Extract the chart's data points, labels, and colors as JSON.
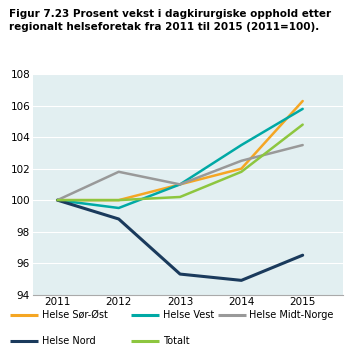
{
  "title_line1": "Figur 7.23 Prosent vekst i dagkirurgiske opphold etter",
  "title_line2": "regionalt helseforetak fra 2011 til 2015 (2011=100).",
  "years": [
    2011,
    2012,
    2013,
    2014,
    2015
  ],
  "series": [
    {
      "name": "Helse Sør-Øst",
      "values": [
        100.0,
        100.0,
        101.0,
        102.0,
        106.3
      ],
      "color": "#F5A623",
      "linewidth": 1.8
    },
    {
      "name": "Helse Vest",
      "values": [
        100.0,
        99.5,
        101.0,
        103.5,
        105.8
      ],
      "color": "#00A9A5",
      "linewidth": 1.8
    },
    {
      "name": "Helse Midt-Norge",
      "values": [
        100.0,
        101.8,
        101.0,
        102.5,
        103.5
      ],
      "color": "#999999",
      "linewidth": 1.8
    },
    {
      "name": "Helse Nord",
      "values": [
        100.0,
        98.8,
        95.3,
        94.9,
        96.5
      ],
      "color": "#1A3A5C",
      "linewidth": 2.2
    },
    {
      "name": "Totalt",
      "values": [
        100.0,
        100.0,
        100.2,
        101.8,
        104.8
      ],
      "color": "#8DC63F",
      "linewidth": 1.8
    }
  ],
  "ylim": [
    94,
    108
  ],
  "yticks": [
    94,
    96,
    98,
    100,
    102,
    104,
    106,
    108
  ],
  "xticks": [
    2011,
    2012,
    2013,
    2014,
    2015
  ],
  "background_title": "#D4D0CB",
  "background_plot": "#E2EFF1",
  "title_fontsize": 7.5,
  "tick_fontsize": 7.5,
  "legend_fontsize": 7.0,
  "grid_color": "#ffffff",
  "border_color": "#aaaaaa"
}
